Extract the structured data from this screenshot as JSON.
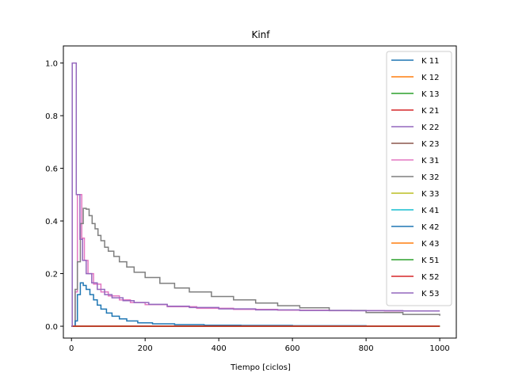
{
  "chart_data": {
    "type": "line",
    "title": "Kinf",
    "xlabel": "Tiempo [ciclos]",
    "ylabel": "",
    "xlim": [
      -22,
      1045
    ],
    "ylim": [
      -0.045,
      1.065
    ],
    "xticks": [
      0,
      200,
      400,
      600,
      800,
      1000
    ],
    "yticks": [
      0.0,
      0.2,
      0.4,
      0.6,
      0.8,
      1.0
    ],
    "xtick_labels": [
      "0",
      "200",
      "400",
      "600",
      "800",
      "1000"
    ],
    "ytick_labels": [
      "0.0",
      "0.2",
      "0.4",
      "0.6",
      "0.8",
      "1.0"
    ],
    "grid": false,
    "legend_position": "top-right",
    "series": [
      {
        "name": "K 11",
        "color": "#1f77b4",
        "values": [
          [
            0,
            0.0
          ],
          [
            1000,
            0.0
          ]
        ]
      },
      {
        "name": "K 12",
        "color": "#ff7f0e",
        "values": [
          [
            0,
            0.0
          ],
          [
            1000,
            0.0
          ]
        ]
      },
      {
        "name": "K 13",
        "color": "#2ca02c",
        "values": [
          [
            0,
            0.0
          ],
          [
            1000,
            0.0
          ]
        ]
      },
      {
        "name": "K 21",
        "color": "#d62728",
        "values": [
          [
            0,
            0.0
          ],
          [
            1000,
            0.0
          ]
        ]
      },
      {
        "name": "K 22",
        "color": "#9467bd",
        "values": [
          [
            0,
            0.0
          ],
          [
            1000,
            0.0
          ]
        ]
      },
      {
        "name": "K 23",
        "color": "#8c564b",
        "values": [
          [
            0,
            0.0
          ],
          [
            1000,
            0.0
          ]
        ]
      },
      {
        "name": "K 31",
        "color": "#e377c2",
        "values": [
          [
            0,
            0.0
          ],
          [
            10,
            0.13
          ],
          [
            16,
            0.5
          ],
          [
            22,
            0.5
          ],
          [
            28,
            0.335
          ],
          [
            35,
            0.25
          ],
          [
            45,
            0.2
          ],
          [
            60,
            0.16
          ],
          [
            80,
            0.13
          ],
          [
            100,
            0.115
          ],
          [
            130,
            0.1
          ],
          [
            160,
            0.09
          ],
          [
            200,
            0.082
          ],
          [
            260,
            0.074
          ],
          [
            340,
            0.068
          ],
          [
            440,
            0.064
          ],
          [
            560,
            0.061
          ],
          [
            700,
            0.059
          ],
          [
            850,
            0.058
          ],
          [
            1000,
            0.058
          ]
        ]
      },
      {
        "name": "K 32",
        "color": "#7f7f7f",
        "values": [
          [
            0,
            0.0
          ],
          [
            10,
            0.14
          ],
          [
            16,
            0.245
          ],
          [
            24,
            0.39
          ],
          [
            32,
            0.448
          ],
          [
            40,
            0.445
          ],
          [
            48,
            0.42
          ],
          [
            56,
            0.39
          ],
          [
            64,
            0.37
          ],
          [
            72,
            0.345
          ],
          [
            80,
            0.325
          ],
          [
            90,
            0.3
          ],
          [
            100,
            0.285
          ],
          [
            115,
            0.265
          ],
          [
            130,
            0.245
          ],
          [
            150,
            0.225
          ],
          [
            170,
            0.205
          ],
          [
            200,
            0.185
          ],
          [
            240,
            0.163
          ],
          [
            280,
            0.145
          ],
          [
            320,
            0.13
          ],
          [
            380,
            0.113
          ],
          [
            440,
            0.1
          ],
          [
            500,
            0.088
          ],
          [
            560,
            0.078
          ],
          [
            620,
            0.07
          ],
          [
            700,
            0.06
          ],
          [
            800,
            0.052
          ],
          [
            900,
            0.045
          ],
          [
            1000,
            0.04
          ]
        ]
      },
      {
        "name": "K 33",
        "color": "#bcbd22",
        "values": [
          [
            0,
            0.0
          ],
          [
            1000,
            0.0
          ]
        ]
      },
      {
        "name": "K 41",
        "color": "#17becf",
        "values": [
          [
            0,
            0.0
          ],
          [
            1000,
            0.0
          ]
        ]
      },
      {
        "name": "K 42",
        "color": "#1f77b4",
        "values": [
          [
            0,
            0.0
          ],
          [
            10,
            0.02
          ],
          [
            16,
            0.12
          ],
          [
            24,
            0.165
          ],
          [
            32,
            0.155
          ],
          [
            40,
            0.14
          ],
          [
            50,
            0.12
          ],
          [
            60,
            0.1
          ],
          [
            70,
            0.08
          ],
          [
            80,
            0.065
          ],
          [
            95,
            0.05
          ],
          [
            110,
            0.038
          ],
          [
            130,
            0.028
          ],
          [
            150,
            0.02
          ],
          [
            180,
            0.013
          ],
          [
            220,
            0.009
          ],
          [
            280,
            0.006
          ],
          [
            360,
            0.004
          ],
          [
            460,
            0.003
          ],
          [
            600,
            0.002
          ],
          [
            800,
            0.001
          ],
          [
            1000,
            0.001
          ]
        ]
      },
      {
        "name": "K 43",
        "color": "#ff7f0e",
        "values": [
          [
            0,
            0.0
          ],
          [
            1000,
            0.0
          ]
        ]
      },
      {
        "name": "K 51",
        "color": "#2ca02c",
        "values": [
          [
            0,
            0.0
          ],
          [
            1000,
            0.0
          ]
        ]
      },
      {
        "name": "K 52",
        "color": "#d62728",
        "values": [
          [
            0,
            0.0
          ],
          [
            1000,
            0.0
          ]
        ]
      },
      {
        "name": "K 53",
        "color": "#9467bd",
        "values": [
          [
            0,
            0.0
          ],
          [
            2,
            1.0
          ],
          [
            12,
            1.0
          ],
          [
            13,
            0.5
          ],
          [
            22,
            0.5
          ],
          [
            23,
            0.33
          ],
          [
            30,
            0.25
          ],
          [
            40,
            0.2
          ],
          [
            55,
            0.165
          ],
          [
            70,
            0.14
          ],
          [
            90,
            0.12
          ],
          [
            110,
            0.108
          ],
          [
            140,
            0.097
          ],
          [
            170,
            0.09
          ],
          [
            210,
            0.083
          ],
          [
            260,
            0.076
          ],
          [
            320,
            0.071
          ],
          [
            400,
            0.066
          ],
          [
            500,
            0.062
          ],
          [
            620,
            0.06
          ],
          [
            760,
            0.059
          ],
          [
            900,
            0.058
          ],
          [
            1000,
            0.058
          ]
        ]
      }
    ]
  }
}
